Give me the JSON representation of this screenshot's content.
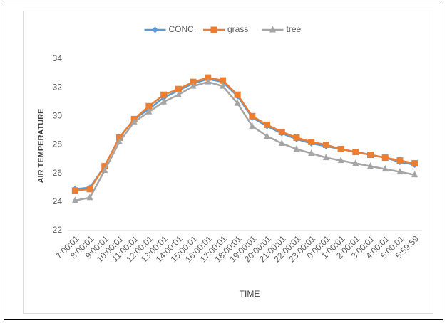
{
  "chart_data": {
    "type": "line",
    "y_label": "AIR TEMPERATURE",
    "x_label": "TIME",
    "categories": [
      "7:00:01",
      "8:00:01",
      "9:00:01",
      "10:00:01",
      "11:00:01",
      "12:00:01",
      "13:00:01",
      "14:00:01",
      "15:00:01",
      "16:00:01",
      "17:00:01",
      "18:00:01",
      "19:00:01",
      "20:00:01",
      "21:00:01",
      "22:00:01",
      "23:00:01",
      "0:00:01",
      "1:00:01",
      "2:00:01",
      "3:00:01",
      "4:00:01",
      "5:00:01",
      "5:59:59"
    ],
    "series": [
      {
        "name": "CONC.",
        "color": "#5b9bd5",
        "marker": "diamond",
        "values": [
          24.9,
          25.0,
          26.5,
          28.5,
          29.8,
          30.5,
          31.3,
          31.8,
          32.3,
          32.6,
          32.4,
          31.4,
          29.9,
          29.3,
          28.8,
          28.4,
          28.1,
          27.9,
          27.7,
          27.5,
          27.3,
          27.1,
          26.8,
          26.6
        ]
      },
      {
        "name": "grass",
        "color": "#ed7d31",
        "marker": "square",
        "values": [
          24.8,
          24.9,
          26.5,
          28.5,
          29.8,
          30.7,
          31.5,
          31.9,
          32.4,
          32.7,
          32.5,
          31.5,
          30.0,
          29.4,
          28.9,
          28.5,
          28.2,
          28.0,
          27.7,
          27.5,
          27.3,
          27.1,
          26.9,
          26.7
        ]
      },
      {
        "name": "tree",
        "color": "#a5a5a5",
        "marker": "triangle",
        "values": [
          24.1,
          24.3,
          26.2,
          28.2,
          29.6,
          30.3,
          31.0,
          31.5,
          32.1,
          32.4,
          32.1,
          30.9,
          29.3,
          28.6,
          28.1,
          27.7,
          27.4,
          27.1,
          26.9,
          26.7,
          26.5,
          26.3,
          26.1,
          25.9
        ]
      }
    ],
    "ylim": [
      22,
      34
    ],
    "yticks": [
      22,
      24,
      26,
      28,
      30,
      32,
      34
    ],
    "grid": false,
    "legend": "top"
  }
}
